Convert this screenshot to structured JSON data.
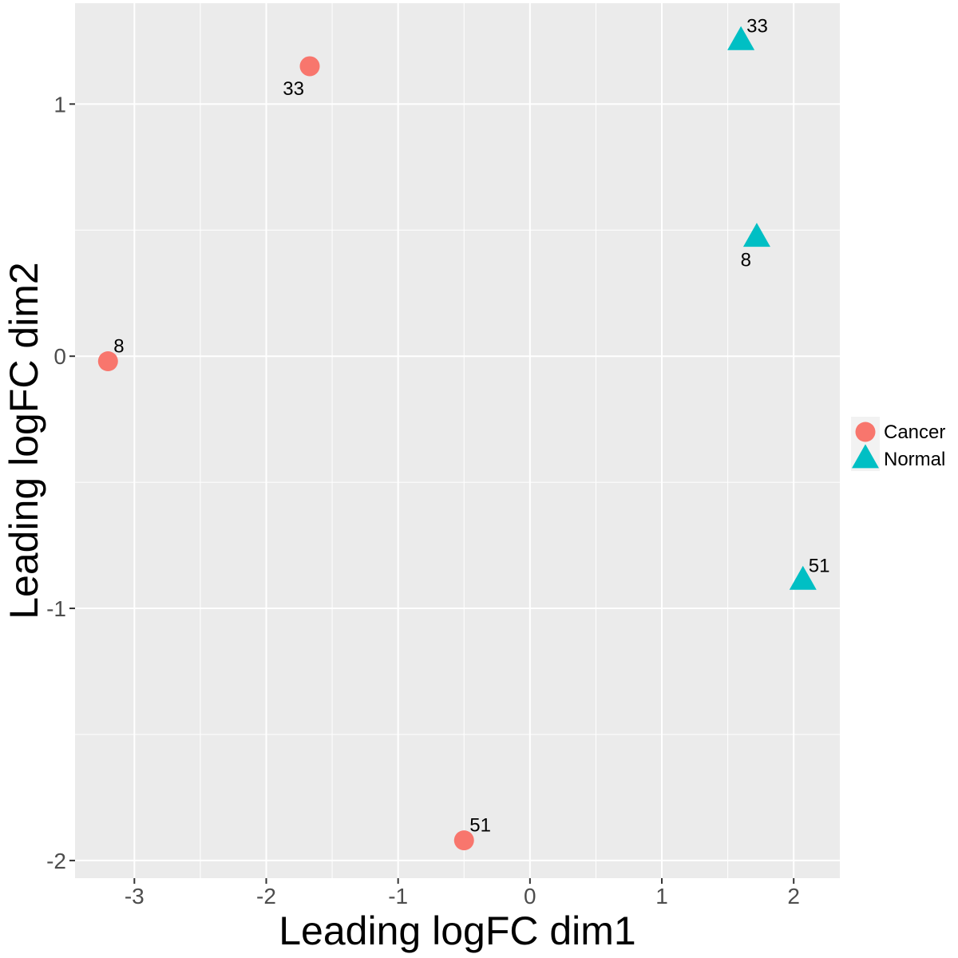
{
  "chart_data": {
    "type": "scatter",
    "title": "",
    "xlabel": "Leading logFC dim1",
    "ylabel": "Leading logFC dim2",
    "xlim": [
      -3.45,
      2.35
    ],
    "ylim": [
      -2.07,
      1.4
    ],
    "x_ticks": [
      -3,
      -2,
      -1,
      0,
      1,
      2
    ],
    "x_tick_labels": [
      "-3",
      "-2",
      "-1",
      "0",
      "1",
      "2"
    ],
    "y_ticks": [
      -2,
      -1,
      0,
      1
    ],
    "y_tick_labels": [
      "-2",
      "-1",
      "0",
      "1"
    ],
    "grid": true,
    "legend_position": "right",
    "series": [
      {
        "name": "Cancer",
        "shape": "circle",
        "color": "#F8766D",
        "points": [
          {
            "x": -1.67,
            "y": 1.15,
            "label": "33",
            "label_pos": "below-left"
          },
          {
            "x": -3.2,
            "y": -0.02,
            "label": "8",
            "label_pos": "above-right"
          },
          {
            "x": -0.5,
            "y": -1.92,
            "label": "51",
            "label_pos": "above-right"
          }
        ]
      },
      {
        "name": "Normal",
        "shape": "triangle",
        "color": "#00BFC4",
        "points": [
          {
            "x": 1.6,
            "y": 1.25,
            "label": "33",
            "label_pos": "above-right"
          },
          {
            "x": 1.72,
            "y": 0.47,
            "label": "8",
            "label_pos": "below-left"
          },
          {
            "x": 2.07,
            "y": -0.89,
            "label": "51",
            "label_pos": "above-right"
          }
        ]
      }
    ]
  }
}
